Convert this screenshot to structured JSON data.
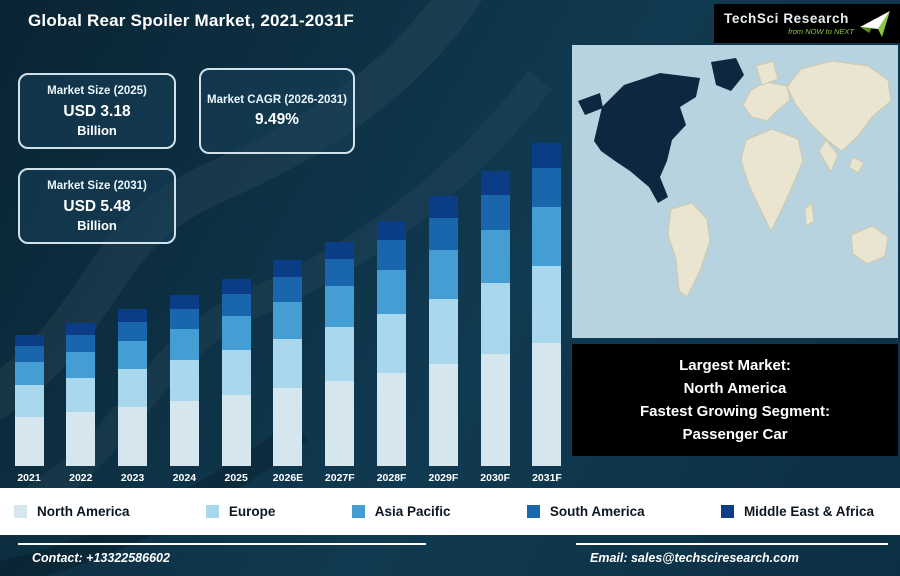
{
  "header": {
    "title": "Global Rear Spoiler Market, 2021-2031F",
    "logo": {
      "name": "TechSci Research",
      "tagline": "from NOW to NEXT"
    }
  },
  "cards": [
    {
      "title": "Market Size (2025)",
      "value": "USD 3.18",
      "unit": "Billion"
    },
    {
      "title": "Market CAGR (2026-2031)",
      "value": "9.49%"
    },
    {
      "title": "Market Size (2031)",
      "value": "USD 5.48",
      "unit": "Billion"
    }
  ],
  "chart_data": {
    "type": "bar",
    "stacked": true,
    "title": "Global Rear Spoiler Market, 2021-2031F",
    "unit": "USD Billion",
    "categories": [
      "2021",
      "2022",
      "2023",
      "2024",
      "2025",
      "2026E",
      "2027F",
      "2028F",
      "2029F",
      "2030F",
      "2031F"
    ],
    "series": [
      {
        "name": "North America",
        "color": "#d6e6ef",
        "values": [
          0.84,
          0.92,
          1.01,
          1.1,
          1.21,
          1.32,
          1.45,
          1.58,
          1.74,
          1.9,
          2.08
        ]
      },
      {
        "name": "Europe",
        "color": "#a9d8ee",
        "values": [
          0.53,
          0.58,
          0.64,
          0.7,
          0.76,
          0.84,
          0.91,
          1.0,
          1.1,
          1.2,
          1.32
        ]
      },
      {
        "name": "Asia Pacific",
        "color": "#449dd3",
        "values": [
          0.4,
          0.44,
          0.48,
          0.52,
          0.57,
          0.63,
          0.69,
          0.75,
          0.82,
          0.9,
          0.99
        ]
      },
      {
        "name": "South America",
        "color": "#1a66ad",
        "values": [
          0.27,
          0.29,
          0.32,
          0.35,
          0.38,
          0.42,
          0.46,
          0.5,
          0.55,
          0.6,
          0.66
        ]
      },
      {
        "name": "Middle East & Africa",
        "color": "#0a3d85",
        "values": [
          0.18,
          0.19,
          0.21,
          0.23,
          0.25,
          0.28,
          0.3,
          0.33,
          0.37,
          0.4,
          0.44
        ]
      }
    ],
    "totals": [
      2.21,
      2.42,
      2.65,
      2.9,
      3.18,
      3.48,
      3.81,
      4.17,
      4.57,
      5.0,
      5.48
    ],
    "ylim": [
      0,
      5.6
    ],
    "grid": false,
    "legend_position": "bottom"
  },
  "callout": {
    "lines": [
      "Largest Market:",
      "North America",
      "Fastest Growing Segment:",
      "Passenger Car"
    ]
  },
  "map": {
    "name": "world-map",
    "highlight": "North America"
  },
  "footer": {
    "contact": "Contact: +13322586602",
    "email": "Email: sales@techsciresearch.com"
  }
}
